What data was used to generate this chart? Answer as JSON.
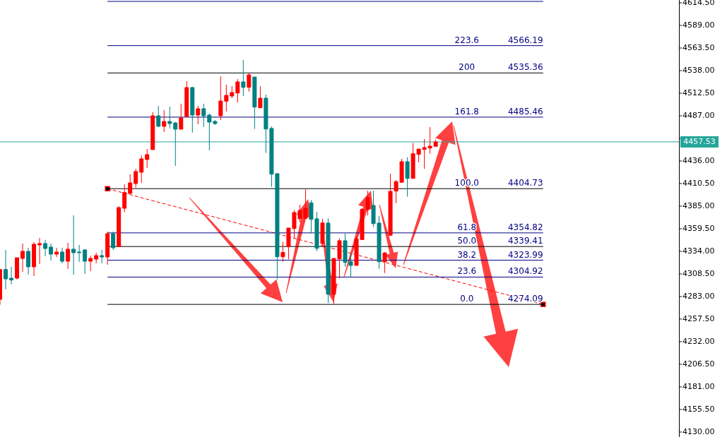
{
  "chart_data": {
    "type": "candlestick",
    "categories": [
      null,
      null,
      null,
      null,
      null,
      null,
      null,
      null,
      null,
      null,
      null,
      null,
      null,
      null,
      null,
      null,
      null,
      null,
      null,
      null,
      null,
      null,
      null,
      null,
      null,
      null,
      null,
      null,
      null,
      null,
      null,
      null,
      null,
      null,
      null,
      null,
      null,
      null,
      null,
      null,
      null,
      null,
      null,
      null,
      null,
      null,
      null,
      null,
      null,
      null,
      null,
      null,
      null,
      null,
      null,
      null,
      null,
      null,
      null,
      null,
      null,
      null,
      null,
      null,
      null,
      null,
      null,
      null,
      null,
      null,
      null,
      null,
      null,
      null,
      null,
      null,
      null,
      null,
      null,
      null,
      null,
      null,
      null,
      null,
      null,
      null,
      null,
      null,
      null,
      null,
      null,
      null,
      null,
      null,
      null,
      null,
      null,
      null,
      null,
      null,
      null,
      null,
      null,
      null,
      null,
      null,
      null,
      null,
      null,
      null,
      null,
      null,
      null,
      null,
      null,
      null,
      null,
      null,
      null,
      null
    ],
    "ohlc": [
      [
        4279.8,
        4313.5,
        4273.7,
        4313.5
      ],
      [
        4313.5,
        4335.6,
        4291.0,
        4302.9
      ],
      [
        4303.7,
        4316.5,
        4296.8,
        4301.6
      ],
      [
        4303.7,
        4326.8,
        4302.4,
        4326.8
      ],
      [
        4326.0,
        4342.8,
        4310.9,
        4334.0
      ],
      [
        4334.0,
        4338.0,
        4307.7,
        4316.5
      ],
      [
        4316.5,
        4344.4,
        4306.1,
        4342.0
      ],
      [
        4341.2,
        4349.1,
        4319.7,
        4342.8
      ],
      [
        4342.8,
        4346.8,
        4328.4,
        4337.2
      ],
      [
        4338.8,
        4342.8,
        4323.6,
        4330.8
      ],
      [
        4330.8,
        4338.0,
        4327.6,
        4333.2
      ],
      [
        4333.2,
        4338.0,
        4320.5,
        4322.8
      ],
      [
        4322.8,
        4343.6,
        4314.1,
        4336.4
      ],
      [
        4336.4,
        4374.6,
        4307.7,
        4332.4
      ],
      [
        4333.2,
        4341.2,
        4322.1,
        4332.4
      ],
      [
        4335.6,
        4336.4,
        4308.5,
        4322.8
      ],
      [
        4322.8,
        4329.2,
        4311.7,
        4326.0
      ],
      [
        4325.2,
        4332.4,
        4320.5,
        4329.2
      ],
      [
        4329.2,
        4335.6,
        4320.5,
        4327.6
      ],
      [
        4327.6,
        4356.3,
        4318.9,
        4353.9
      ],
      [
        4353.9,
        4356.3,
        4335.6,
        4338.0
      ],
      [
        4339.3,
        4385.0,
        4339.3,
        4383.4
      ],
      [
        4382.6,
        4409.7,
        4378.1,
        4400.4
      ],
      [
        4399.3,
        4420.9,
        4399.3,
        4411.3
      ],
      [
        4410.5,
        4427.2,
        4406.0,
        4424.1
      ],
      [
        4423.3,
        4442.4,
        4411.3,
        4438.4
      ],
      [
        4437.6,
        4449.5,
        4428.0,
        4443.2
      ],
      [
        4448.8,
        4491.0,
        4448.8,
        4487.0
      ],
      [
        4487.0,
        4498.2,
        4474.3,
        4475.1
      ],
      [
        4475.1,
        4493.4,
        4468.7,
        4480.6
      ],
      [
        4480.6,
        4497.4,
        4472.7,
        4478.2
      ],
      [
        4479.0,
        4479.8,
        4430.4,
        4471.9
      ],
      [
        4471.9,
        4500.6,
        4471.9,
        4484.6
      ],
      [
        4486.2,
        4526.1,
        4486.2,
        4518.9
      ],
      [
        4518.9,
        4519.7,
        4467.9,
        4487.8
      ],
      [
        4487.8,
        4498.2,
        4477.4,
        4495.0
      ],
      [
        4495.0,
        4500.6,
        4474.3,
        4487.0
      ],
      [
        4487.8,
        4489.4,
        4448.0,
        4479.8
      ],
      [
        4480.6,
        4482.2,
        4476.6,
        4478.2
      ],
      [
        4487.0,
        4531.6,
        4482.2,
        4503.7
      ],
      [
        4503.5,
        4522.1,
        4491.8,
        4510.1
      ],
      [
        4509.3,
        4520.5,
        4506.9,
        4513.3
      ],
      [
        4512.7,
        4528.4,
        4502.1,
        4525.3
      ],
      [
        4525.3,
        4550.0,
        4509.3,
        4519.1
      ],
      [
        4519.1,
        4534.8,
        4514.3,
        4533.2
      ],
      [
        4530.8,
        4530.8,
        4472.1,
        4496.8
      ],
      [
        4496.0,
        4520.5,
        4496.0,
        4506.9
      ],
      [
        4506.9,
        4510.9,
        4445.0,
        4472.1
      ],
      [
        4472.7,
        4475.1,
        4406.8,
        4421.1
      ],
      [
        4421.7,
        4421.7,
        4302.4,
        4327.9
      ],
      [
        4327.9,
        4344.9,
        4322.3,
        4332.7
      ],
      [
        4339.3,
        4360.3,
        4325.0,
        4360.3
      ],
      [
        4359.7,
        4380.5,
        4348.6,
        4377.8
      ],
      [
        4370.7,
        4386.6,
        4366.7,
        4380.2
      ],
      [
        4371.2,
        4403.9,
        4371.2,
        4382.6
      ],
      [
        4388.8,
        4391.9,
        4354.7,
        4370.1
      ],
      [
        4370.7,
        4378.6,
        4334.2,
        4337.4
      ],
      [
        4342.8,
        4370.7,
        4338.8,
        4366.1
      ],
      [
        4365.9,
        4371.2,
        4275.6,
        4285.6
      ],
      [
        4285.6,
        4326.0,
        4274.5,
        4326.0
      ],
      [
        4325.5,
        4348.6,
        4303.5,
        4346.0
      ],
      [
        4346.0,
        4354.2,
        4316.7,
        4321.5
      ],
      [
        4322.3,
        4331.6,
        4304.3,
        4318.1
      ],
      [
        4318.1,
        4350.7,
        4318.1,
        4348.1
      ],
      [
        4347.3,
        4382.6,
        4346.8,
        4381.3
      ],
      [
        4381.0,
        4402.5,
        4374.6,
        4394.6
      ],
      [
        4385.8,
        4402.5,
        4361.3,
        4365.3
      ],
      [
        4365.9,
        4373.8,
        4314.3,
        4322.3
      ],
      [
        4322.3,
        4333.4,
        4309.5,
        4332.2
      ],
      [
        4352.1,
        4421.7,
        4352.1,
        4401.7
      ],
      [
        4402.0,
        4414.5,
        4388.4,
        4412.7
      ],
      [
        4411.9,
        4438.4,
        4411.9,
        4435.2
      ],
      [
        4435.2,
        4440.2,
        4395.6,
        4416.3
      ],
      [
        4416.3,
        4456.2,
        4416.3,
        4444.2
      ],
      [
        4443.4,
        4449.5,
        4434.4,
        4449.5
      ],
      [
        4449.0,
        4460.9,
        4427.2,
        4451.1
      ],
      [
        4450.6,
        4474.3,
        4444.2,
        4452.7
      ],
      [
        4452.5,
        4459.9,
        4452.5,
        4457.53
      ],
      null,
      null,
      null,
      null,
      null,
      null,
      null,
      null,
      null,
      null,
      null,
      null,
      null,
      null,
      null,
      null,
      null,
      null,
      null,
      null,
      null,
      null,
      null,
      null,
      null,
      null,
      null,
      null,
      null,
      null,
      null,
      null,
      null,
      null,
      null,
      null,
      null,
      null,
      null,
      null,
      null,
      null
    ],
    "colors": [
      "#ff0000",
      "#008080",
      "#008080",
      "#ff0000",
      "#ff0000",
      "#008080",
      "#ff0000",
      "#ff0000",
      "#008080",
      "#008080",
      "#ff0000",
      "#008080",
      "#ff0000",
      "#008080",
      "#008080",
      "#008080",
      "#ff0000",
      "#ff0000",
      "#008080",
      "#ff0000",
      "#008080",
      "#ff0000",
      "#ff0000",
      "#ff0000",
      "#ff0000",
      "#ff0000",
      "#ff0000",
      "#ff0000",
      "#008080",
      "#ff0000",
      "#008080",
      "#008080",
      "#ff0000",
      "#ff0000",
      "#008080",
      "#ff0000",
      "#008080",
      "#008080",
      "#008080",
      "#ff0000",
      "#ff0000",
      "#ff0000",
      "#ff0000",
      "#008080",
      "#ff0000",
      "#008080",
      "#ff0000",
      "#008080",
      "#008080",
      "#008080",
      "#ff0000",
      "#ff0000",
      "#ff0000",
      "#ff0000",
      "#ff0000",
      "#008080",
      "#008080",
      "#ff0000",
      "#008080",
      "#ff0000",
      "#ff0000",
      "#008080",
      "#008080",
      "#ff0000",
      "#ff0000",
      "#ff0000",
      "#008080",
      "#008080",
      "#ff0000",
      "#ff0000",
      "#ff0000",
      "#ff0000",
      "#008080",
      "#ff0000",
      "#ff0000",
      "#ff0000",
      "#ff0000",
      "#ff0000",
      null,
      null,
      null,
      null,
      null,
      null,
      null,
      null,
      null,
      null,
      null,
      null,
      null,
      null,
      null,
      null,
      null,
      null,
      null,
      null,
      null,
      null,
      null,
      null,
      null,
      null,
      null,
      null,
      null,
      null,
      null,
      null,
      null,
      null,
      null,
      null,
      null,
      null,
      null,
      null,
      null,
      null
    ],
    "series": [
      {
        "type": "line",
        "color": "#ff0000",
        "line_style": "dashed",
        "marker": "square",
        "values": [
          null,
          null,
          null,
          null,
          null,
          null,
          null,
          null,
          null,
          null,
          null,
          null,
          null,
          null,
          null,
          null,
          null,
          null,
          null,
          4404.7,
          null,
          null,
          null,
          null,
          null,
          null,
          null,
          null,
          null,
          null,
          null,
          null,
          null,
          null,
          null,
          null,
          null,
          null,
          null,
          null,
          null,
          null,
          null,
          null,
          null,
          null,
          null,
          null,
          null,
          null,
          null,
          null,
          null,
          null,
          null,
          null,
          null,
          null,
          null,
          null,
          null,
          null,
          null,
          null,
          null,
          null,
          null,
          null,
          null,
          null,
          null,
          null,
          null,
          null,
          null,
          null,
          null,
          null,
          null,
          null,
          null,
          null,
          null,
          null,
          null,
          null,
          null,
          null,
          null,
          null,
          null,
          null,
          null,
          null,
          null,
          null,
          4274.1,
          null,
          null,
          null,
          null,
          null,
          null,
          null,
          null,
          null,
          null,
          null,
          null,
          null,
          null,
          null,
          null,
          null,
          null,
          null,
          null,
          null,
          null,
          null
        ]
      }
    ],
    "ylim": [
      4124.4,
      4617.7
    ],
    "yticks": [
      {
        "value": 4614.5,
        "label": "4614.50"
      },
      {
        "value": 4589,
        "label": "4589.00"
      },
      {
        "value": 4563.5,
        "label": "4563.50"
      },
      {
        "value": 4538,
        "label": "4538.00"
      },
      {
        "value": 4512.5,
        "label": "4512.50"
      },
      {
        "value": 4487,
        "label": "4487.00"
      },
      {
        "value": 4461.5,
        "label": null
      },
      {
        "value": 4436,
        "label": "4436.00"
      },
      {
        "value": 4410.5,
        "label": "4410.50"
      },
      {
        "value": 4385,
        "label": "4385.00"
      },
      {
        "value": 4359.5,
        "label": "4359.50"
      },
      {
        "value": 4334,
        "label": "4334.00"
      },
      {
        "value": 4308.5,
        "label": "4308.50"
      },
      {
        "value": 4283,
        "label": "4283.00"
      },
      {
        "value": 4257.5,
        "label": "4257.50"
      },
      {
        "value": 4232,
        "label": "4232.00"
      },
      {
        "value": 4206.5,
        "label": "4206.50"
      },
      {
        "value": 4181,
        "label": "4181.00"
      },
      {
        "value": 4155.5,
        "label": "4155.50"
      },
      {
        "value": 4130,
        "label": "4130.00"
      }
    ],
    "tick_labels": "y",
    "annotations": [
      {
        "text": "223.6",
        "y": 4566.19
      },
      {
        "text": "200",
        "y": 4535.36
      },
      {
        "text": "161.8",
        "y": 4485.46
      },
      {
        "text": "100.0",
        "y": 4404.73
      },
      {
        "text": "61.8",
        "y": 4354.82
      },
      {
        "text": "50.0",
        "y": 4339.41
      },
      {
        "text": "38.2",
        "y": 4323.99
      },
      {
        "text": "23.6",
        "y": 4304.92
      },
      {
        "text": "0.0",
        "y": 4274.09
      }
    ],
    "ref_lines": [
      {
        "axis": "y",
        "value": 4616.1,
        "label": null,
        "color": "#000080"
      },
      {
        "axis": "y",
        "value": 4566.19,
        "label": "4566.19",
        "color": "#000080"
      },
      {
        "axis": "y",
        "value": 4535.36,
        "label": "4535.36",
        "color": "#000000"
      },
      {
        "axis": "y",
        "value": 4485.46,
        "label": "4485.46",
        "color": "#000080"
      },
      {
        "axis": "y",
        "value": 4404.73,
        "label": "4404.73",
        "color": "#000000"
      },
      {
        "axis": "y",
        "value": 4354.82,
        "label": "4354.82",
        "color": "#000080"
      },
      {
        "axis": "y",
        "value": 4339.41,
        "label": "4339.41",
        "color": "#000000"
      },
      {
        "axis": "y",
        "value": 4323.99,
        "label": "4323.99",
        "color": "#000080"
      },
      {
        "axis": "y",
        "value": 4304.92,
        "label": "4304.92",
        "color": "#000080"
      },
      {
        "axis": "y",
        "value": 4274.09,
        "label": "4274.09",
        "color": "#000000"
      },
      {
        "axis": "y",
        "value": 4457.53,
        "label": "4457.53",
        "color": "#26a69a"
      }
    ]
  }
}
